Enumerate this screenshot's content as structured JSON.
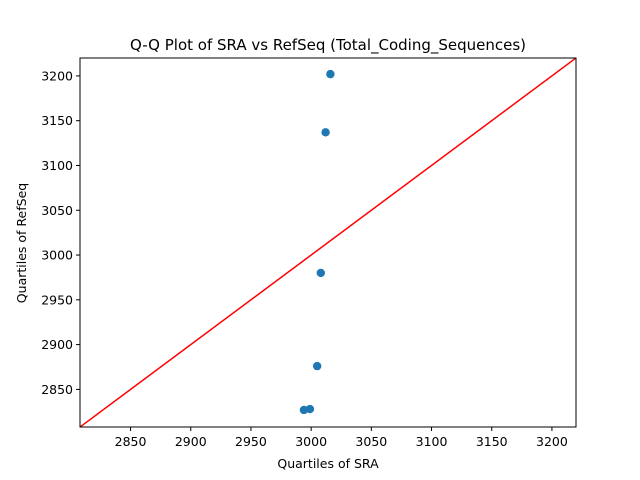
{
  "chart_data": {
    "type": "scatter",
    "title": "Q-Q Plot of SRA vs RefSeq (Total_Coding_Sequences)",
    "xlabel": "Quartiles of SRA",
    "ylabel": "Quartiles of RefSeq",
    "xlim": [
      2808,
      3220
    ],
    "ylim": [
      2808,
      3220
    ],
    "x_ticks": [
      2850,
      2900,
      2950,
      3000,
      3050,
      3100,
      3150,
      3200
    ],
    "y_ticks": [
      2850,
      2900,
      2950,
      3000,
      3050,
      3100,
      3150,
      3200
    ],
    "series": [
      {
        "points": [
          {
            "x": 2994,
            "y": 2827
          },
          {
            "x": 2999,
            "y": 2828
          },
          {
            "x": 3005,
            "y": 2876
          },
          {
            "x": 3008,
            "y": 2980
          },
          {
            "x": 3012,
            "y": 3137
          },
          {
            "x": 3016,
            "y": 3202
          }
        ],
        "color": "#1f77b4"
      }
    ],
    "reference_line": {
      "from": [
        2808,
        2808
      ],
      "to": [
        3220,
        3220
      ],
      "color": "#ff0000"
    },
    "grid": false,
    "legend": "none"
  }
}
